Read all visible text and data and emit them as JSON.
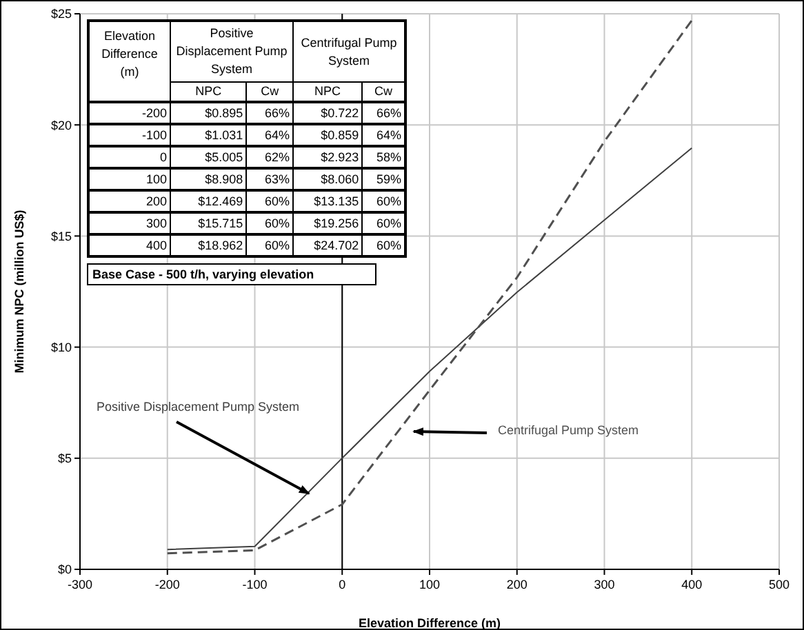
{
  "chart_data": {
    "type": "line",
    "xlabel": "Elevation Difference (m)",
    "ylabel": "Minimum NPC (million US$)",
    "x": [
      -200,
      -100,
      0,
      100,
      200,
      300,
      400
    ],
    "series": [
      {
        "name": "Positive Displacement Pump System",
        "color": "#404040",
        "line_style": "solid",
        "values": [
          0.895,
          1.031,
          5.005,
          8.908,
          12.469,
          15.715,
          18.962
        ]
      },
      {
        "name": "Centrifugal Pump System",
        "color": "#505050",
        "line_style": "dashed",
        "values": [
          0.722,
          0.859,
          2.923,
          8.06,
          13.135,
          19.256,
          24.702
        ]
      }
    ],
    "xlim": [
      -300,
      500
    ],
    "xticks": [
      -300,
      -200,
      -100,
      0,
      100,
      200,
      300,
      400,
      500
    ],
    "ylim": [
      0,
      25
    ],
    "yticks": [
      {
        "value": 0,
        "label": "$0"
      },
      {
        "value": 5,
        "label": "$5"
      },
      {
        "value": 10,
        "label": "$10"
      },
      {
        "value": 15,
        "label": "$15"
      },
      {
        "value": 20,
        "label": "$20"
      },
      {
        "value": 25,
        "label": "$25"
      }
    ],
    "ref_lines": [
      {
        "axis": "x",
        "value": 0,
        "color": "#000000"
      }
    ],
    "grid": true,
    "legend": false,
    "marker": "none",
    "annotations": [
      "Elevation Difference (m)",
      "Positive Displacement Pump System",
      "Centrifugal Pump System",
      "NPC",
      "Cw",
      "NPC",
      "Cw",
      "-200",
      "$0.895",
      "66%",
      "$0.722",
      "66%",
      "-100",
      "$1.031",
      "64%",
      "$0.859",
      "64%",
      "0",
      "$5.005",
      "62%",
      "$2.923",
      "58%",
      "100",
      "$8.908",
      "63%",
      "$8.060",
      "59%",
      "200",
      "$12.469",
      "60%",
      "$13.135",
      "60%",
      "300",
      "$15.715",
      "60%",
      "$19.256",
      "60%",
      "400",
      "$18.962",
      "60%",
      "$24.702",
      "60%",
      "Base Case - 500 t/h, varying elevation"
    ]
  }
}
